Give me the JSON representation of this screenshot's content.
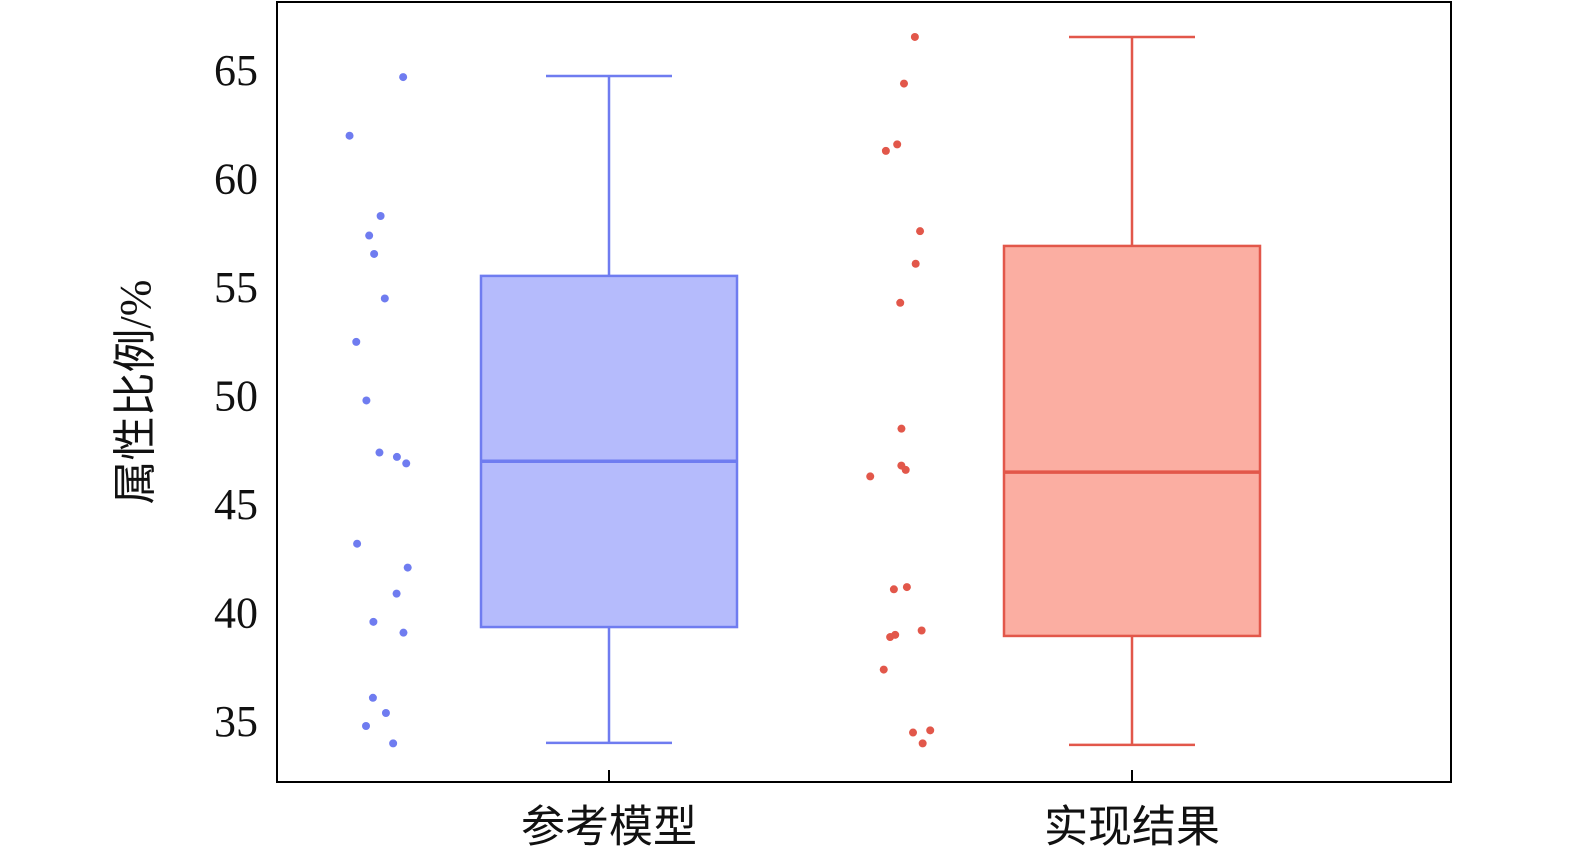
{
  "chart_data": {
    "type": "box",
    "ylabel": "属性比例/%",
    "categories": [
      "参考模型",
      "实现结果"
    ],
    "ylim": [
      32.42,
      68.36
    ],
    "yticks": [
      35,
      40,
      45,
      50,
      55,
      60,
      65
    ],
    "boxes": [
      {
        "color": "#6f7cf0",
        "fill": "#b5bbfc",
        "min": 34.22,
        "q1": 39.56,
        "median": 47.2,
        "q3": 55.74,
        "max": 64.95,
        "points": [
          64.9,
          62.2,
          58.5,
          57.6,
          56.75,
          54.7,
          52.7,
          50.0,
          47.6,
          47.1,
          47.4,
          43.4,
          42.3,
          41.1,
          39.8,
          39.3,
          36.3,
          35.6,
          35.0,
          34.2
        ]
      },
      {
        "color": "#e2574a",
        "fill": "#fbaea2",
        "min": 34.13,
        "q1": 39.15,
        "median": 46.7,
        "q3": 57.12,
        "max": 66.75,
        "points": [
          66.75,
          64.6,
          61.8,
          61.5,
          57.8,
          56.3,
          54.5,
          48.7,
          47.0,
          46.5,
          46.8,
          41.4,
          41.3,
          39.4,
          39.1,
          39.2,
          37.6,
          34.8,
          34.7,
          34.2
        ]
      }
    ]
  }
}
